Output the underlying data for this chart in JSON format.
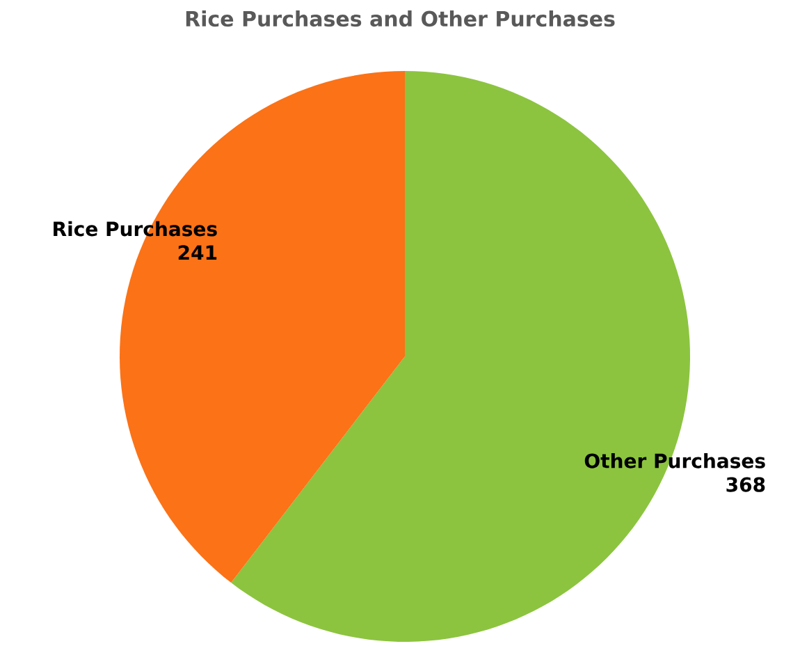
{
  "chart_data": {
    "type": "pie",
    "title": "Rice Purchases and Other Purchases",
    "categories": [
      "Rice Purchases",
      "Other Purchases"
    ],
    "values": [
      241,
      368
    ],
    "colors": [
      "#fb7217",
      "#8cc43f"
    ],
    "data_labels": true
  }
}
